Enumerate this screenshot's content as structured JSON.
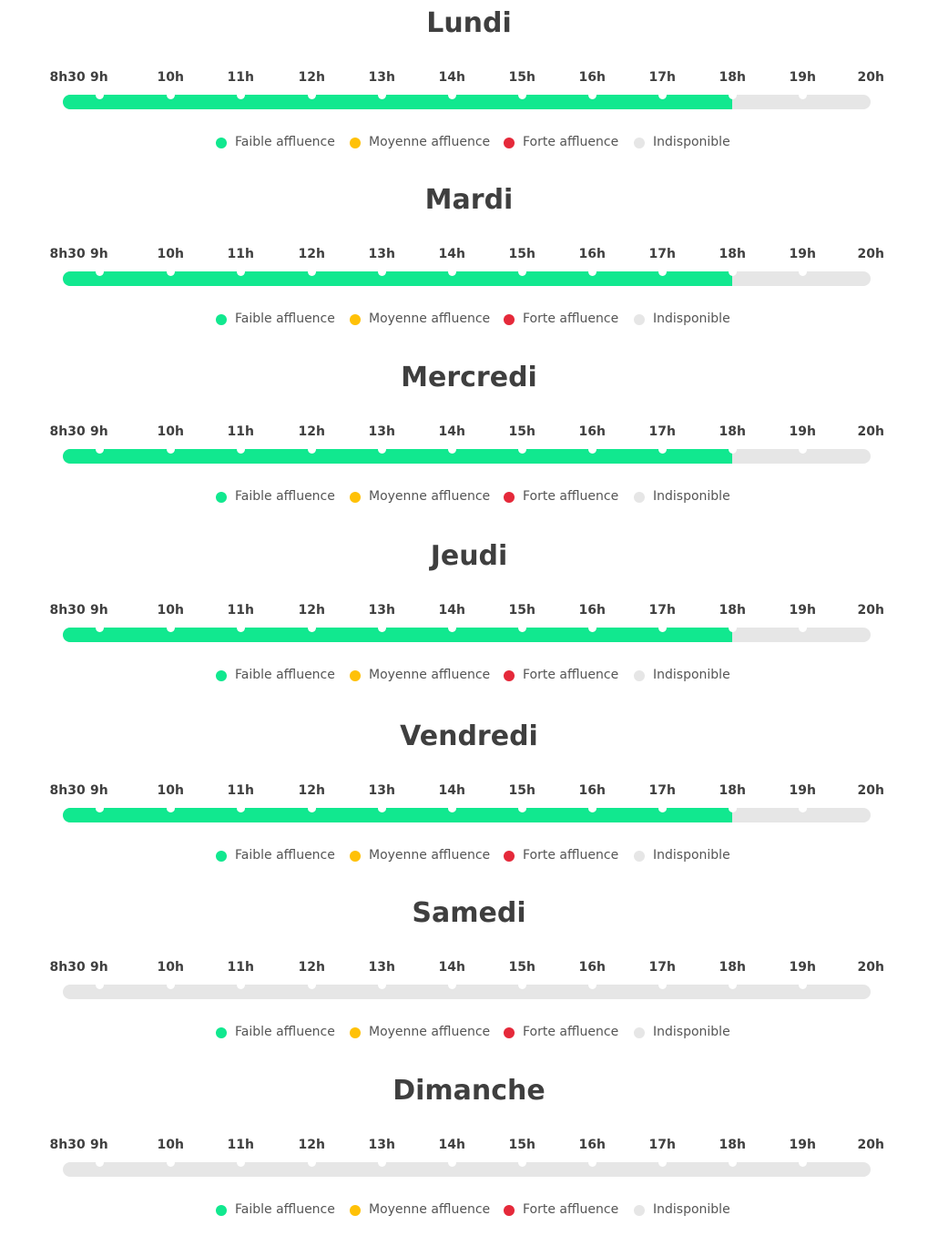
{
  "chart_data": {
    "type": "bar",
    "hours": [
      "8h30",
      "9h",
      "10h",
      "11h",
      "12h",
      "13h",
      "14h",
      "15h",
      "16h",
      "17h",
      "18h",
      "19h",
      "20h"
    ],
    "legend": [
      {
        "key": "faible",
        "label": "Faible affluence",
        "color": "#11e88f"
      },
      {
        "key": "moyenne",
        "label": "Moyenne affluence",
        "color": "#ffc107"
      },
      {
        "key": "forte",
        "label": "Forte affluence",
        "color": "#e5293a"
      },
      {
        "key": "indisponible",
        "label": "Indisponible",
        "color": "#e6e6e6"
      }
    ],
    "days": [
      {
        "name": "Lundi",
        "segments": [
          {
            "from": "8h30",
            "to": "18h",
            "level": "faible"
          },
          {
            "from": "18h",
            "to": "20h",
            "level": "indisponible"
          }
        ]
      },
      {
        "name": "Mardi",
        "segments": [
          {
            "from": "8h30",
            "to": "18h",
            "level": "faible"
          },
          {
            "from": "18h",
            "to": "20h",
            "level": "indisponible"
          }
        ]
      },
      {
        "name": "Mercredi",
        "segments": [
          {
            "from": "8h30",
            "to": "18h",
            "level": "faible"
          },
          {
            "from": "18h",
            "to": "20h",
            "level": "indisponible"
          }
        ]
      },
      {
        "name": "Jeudi",
        "segments": [
          {
            "from": "8h30",
            "to": "18h",
            "level": "faible"
          },
          {
            "from": "18h",
            "to": "20h",
            "level": "indisponible"
          }
        ]
      },
      {
        "name": "Vendredi",
        "segments": [
          {
            "from": "8h30",
            "to": "18h",
            "level": "faible"
          },
          {
            "from": "18h",
            "to": "20h",
            "level": "indisponible"
          }
        ]
      },
      {
        "name": "Samedi",
        "segments": [
          {
            "from": "8h30",
            "to": "20h",
            "level": "indisponible"
          }
        ]
      },
      {
        "name": "Dimanche",
        "segments": [
          {
            "from": "8h30",
            "to": "20h",
            "level": "indisponible"
          }
        ]
      }
    ]
  }
}
